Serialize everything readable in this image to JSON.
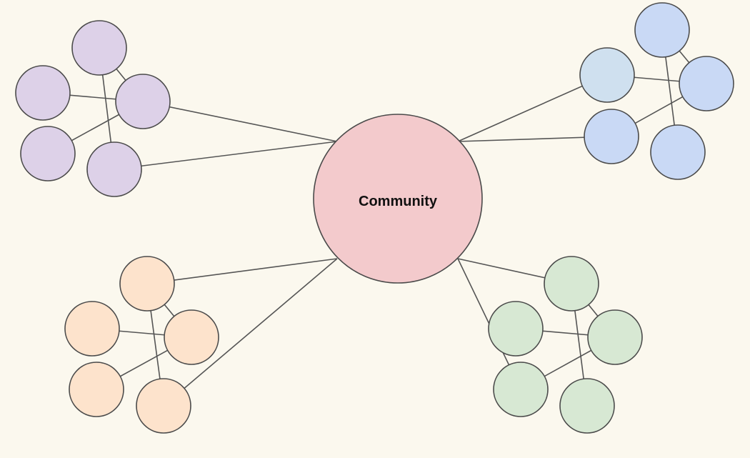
{
  "center": {
    "label": "Community",
    "fill": "#f3cacc"
  },
  "colors": {
    "background": "#fbf8ee",
    "stroke": "#4a4a4a",
    "edge": "#555555",
    "text": "#111111"
  },
  "clusters": [
    {
      "name": "purple",
      "fill": "#ddd1e8",
      "nodes": 5
    },
    {
      "name": "blue",
      "fill": "#c9d9f5",
      "nodes": 5,
      "accent_fill": "#cfe0ef"
    },
    {
      "name": "orange",
      "fill": "#fde3cc",
      "nodes": 5
    },
    {
      "name": "green",
      "fill": "#d7e8d3",
      "nodes": 5
    }
  ]
}
